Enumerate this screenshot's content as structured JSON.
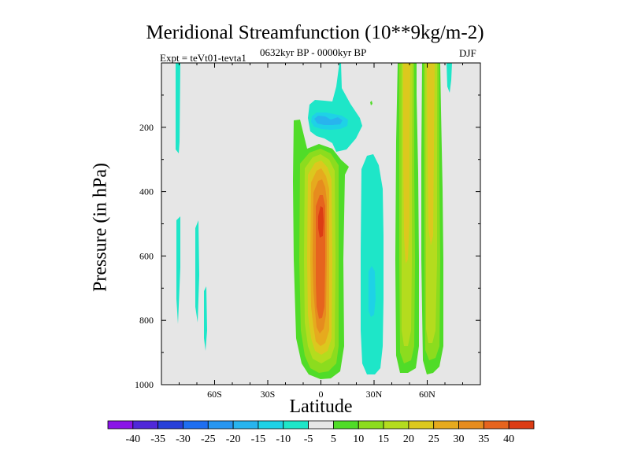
{
  "chart_data": {
    "type": "contour",
    "title": "Meridional Streamfunction (10**9kg/m-2)",
    "subtitle_left": "Expt = teVt01-tevta1",
    "subtitle_center": "0632kyr BP - 0000kyr BP",
    "subtitle_right": "DJF",
    "xlabel": "Latitude",
    "ylabel": "Pressure (in hPa)",
    "xlim": [
      -90,
      90
    ],
    "ylim": [
      1000,
      0
    ],
    "x_ticks": [
      {
        "value": -60,
        "label": "60S"
      },
      {
        "value": -30,
        "label": "30S"
      },
      {
        "value": 0,
        "label": "0"
      },
      {
        "value": 30,
        "label": "30N"
      },
      {
        "value": 60,
        "label": "60N"
      }
    ],
    "y_ticks": [
      {
        "value": 200,
        "label": "200"
      },
      {
        "value": 400,
        "label": "400"
      },
      {
        "value": 600,
        "label": "600"
      },
      {
        "value": 800,
        "label": "800"
      },
      {
        "value": 1000,
        "label": "1000"
      }
    ],
    "colorbar": {
      "labels": [
        "-40",
        "-35",
        "-30",
        "-25",
        "-20",
        "-15",
        "-10",
        "-5",
        "5",
        "10",
        "15",
        "20",
        "25",
        "30",
        "35",
        "40"
      ],
      "colors": [
        "#8a14e8",
        "#5028d8",
        "#2840d8",
        "#1e6ef0",
        "#2896f0",
        "#28b4ee",
        "#1ed2e6",
        "#1ee6c8",
        "#e6e6e6",
        "#50dc28",
        "#8cdc1e",
        "#b4dc1e",
        "#dcc81e",
        "#e6aa1e",
        "#e68c1e",
        "#e6641e",
        "#dc3c14"
      ]
    },
    "features": [
      {
        "name": "equatorial-positive-cell",
        "lat_range": [
          -15,
          12
        ],
        "p_range": [
          180,
          990
        ],
        "max_level": 35,
        "center_lat": 0,
        "center_p": 500
      },
      {
        "name": "upper-negative-cell",
        "lat_range": [
          -7,
          12
        ],
        "p_range": [
          90,
          240
        ],
        "min_level": -15,
        "center_lat": 0,
        "center_p": 175
      },
      {
        "name": "subtropical-negative-band",
        "lat_range": [
          23,
          33
        ],
        "p_range": [
          280,
          960
        ],
        "min_level": -10
      },
      {
        "name": "midlatitude-positive-column-1",
        "lat_range": [
          43,
          55
        ],
        "p_range": [
          0,
          970
        ],
        "max_level": 20
      },
      {
        "name": "midlatitude-positive-column-2",
        "lat_range": [
          58,
          68
        ],
        "p_range": [
          0,
          960
        ],
        "max_level": 20
      },
      {
        "name": "high-latitude-negative-strips",
        "lats": [
          -80,
          -70,
          -64,
          73
        ],
        "level": -5
      }
    ]
  }
}
